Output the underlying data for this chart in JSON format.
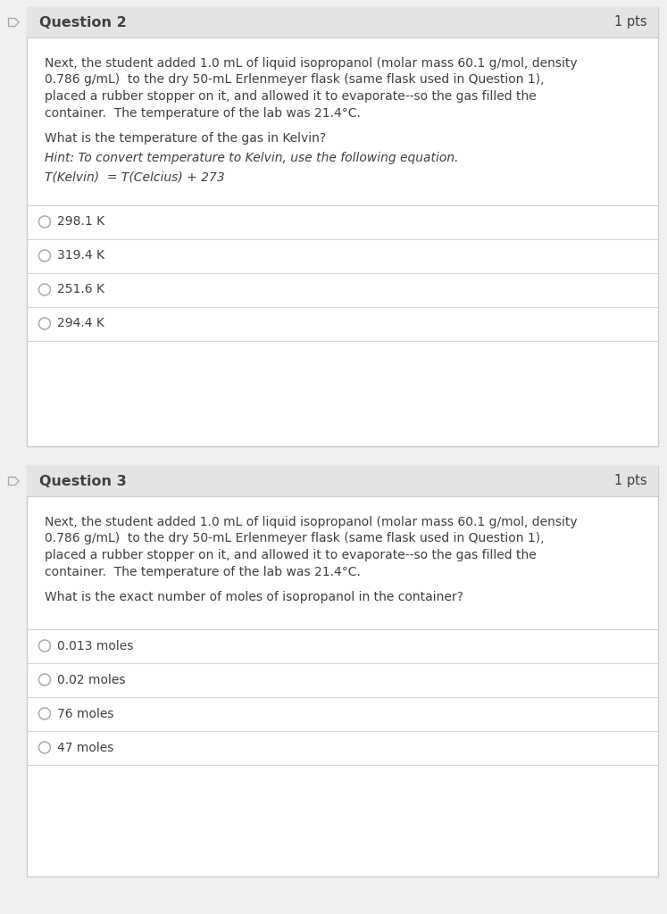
{
  "bg_color": "#f0f0f0",
  "card_bg": "#ffffff",
  "card_border": "#cccccc",
  "header_bg": "#e4e4e4",
  "text_color": "#404040",
  "radio_color": "#aaaaaa",
  "divider_color": "#d4d4d4",
  "arrow_border": "#aaaaaa",
  "q2": {
    "title": "Question 2",
    "pts": "1 pts",
    "body_lines": [
      "Next, the student added 1.0 mL of liquid isopropanol (molar mass 60.1 g/mol, density",
      "0.786 g/mL)  to the dry 50-mL Erlenmeyer flask (same flask used in Question 1),",
      "placed a rubber stopper on it, and allowed it to evaporate--so the gas filled the",
      "container.  The temperature of the lab was 21.4°C."
    ],
    "question": "What is the temperature of the gas in Kelvin?",
    "hint": "Hint: To convert temperature to Kelvin, use the following equation.",
    "formula": "T(Kelvin)  = T(Celcius) + 273",
    "choices": [
      "298.1 K",
      "319.4 K",
      "251.6 K",
      "294.4 K"
    ],
    "has_hint": true
  },
  "q3": {
    "title": "Question 3",
    "pts": "1 pts",
    "body_lines": [
      "Next, the student added 1.0 mL of liquid isopropanol (molar mass 60.1 g/mol, density",
      "0.786 g/mL)  to the dry 50-mL Erlenmeyer flask (same flask used in Question 1),",
      "placed a rubber stopper on it, and allowed it to evaporate--so the gas filled the",
      "container.  The temperature of the lab was 21.4°C."
    ],
    "question": "What is the exact number of moles of isopropanol in the container?",
    "choices": [
      "0.013 moles",
      "0.02 moles",
      "76 moles",
      "47 moles"
    ],
    "has_hint": false
  }
}
